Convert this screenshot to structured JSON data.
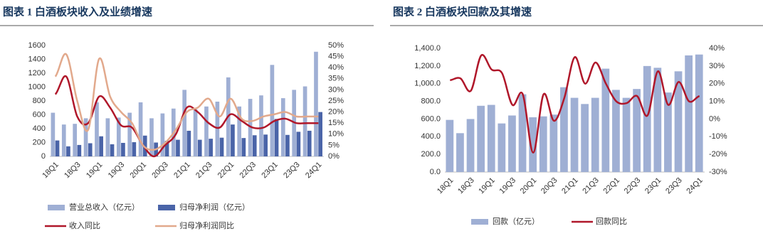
{
  "chart_data": [
    {
      "type": "combo",
      "title": "图表 1  白酒板块收入及业绩增速",
      "categories": [
        "18Q1",
        null,
        "18Q3",
        null,
        "19Q1",
        null,
        "19Q3",
        null,
        "20Q1",
        null,
        "20Q3",
        null,
        "21Q1",
        null,
        "21Q3",
        null,
        "22Q1",
        null,
        "22Q3",
        null,
        "23Q1",
        null,
        "23Q3",
        null,
        "24Q1"
      ],
      "ylim": [
        0,
        1600
      ],
      "yticks": [
        0,
        200,
        400,
        600,
        800,
        1000,
        1200,
        1400,
        1600
      ],
      "y2lim": [
        0,
        50
      ],
      "y2ticks": [
        {
          "value": 0,
          "label": "0%"
        },
        {
          "value": 5,
          "label": "5%"
        },
        {
          "value": 10,
          "label": "10%"
        },
        {
          "value": 15,
          "label": "15%"
        },
        {
          "value": 20,
          "label": "20%"
        },
        {
          "value": 25,
          "label": "25%"
        },
        {
          "value": 30,
          "label": "30%"
        },
        {
          "value": 35,
          "label": "35%"
        },
        {
          "value": 40,
          "label": "40%"
        },
        {
          "value": 45,
          "label": "45%"
        },
        {
          "value": 50,
          "label": "50%"
        }
      ],
      "series": [
        {
          "name": "营业总收入（亿元）",
          "type": "bar",
          "color": "#9fafd4",
          "values": [
            630,
            460,
            470,
            550,
            780,
            550,
            560,
            630,
            780,
            550,
            620,
            690,
            960,
            680,
            720,
            790,
            1140,
            720,
            830,
            880,
            1320,
            840,
            960,
            1010,
            1510
          ]
        },
        {
          "name": "归母净利润（亿元）",
          "type": "bar",
          "color": "#4a64a8",
          "values": [
            230,
            145,
            165,
            190,
            290,
            175,
            195,
            205,
            300,
            200,
            225,
            240,
            370,
            240,
            255,
            270,
            460,
            265,
            305,
            315,
            540,
            310,
            355,
            370,
            640
          ]
        },
        {
          "name": "收入同比",
          "type": "line",
          "axis": "y2",
          "color": "#b0172a",
          "values": [
            28,
            36,
            18,
            15,
            27,
            22,
            14,
            13,
            5,
            0,
            5,
            10,
            22,
            20,
            15,
            13,
            19,
            16,
            13,
            13,
            16,
            17,
            15,
            15,
            15
          ]
        },
        {
          "name": "归母净利润同比",
          "type": "line",
          "axis": "y2",
          "color": "#e2a98c",
          "values": [
            36,
            46,
            25,
            12,
            44,
            27,
            20,
            15,
            5,
            3,
            6,
            12,
            20,
            22,
            26,
            18,
            26,
            17,
            16,
            18,
            19,
            20,
            18,
            18,
            18
          ]
        }
      ]
    },
    {
      "type": "combo",
      "title": "图表 2  白酒板块回款及其增速",
      "categories": [
        "18Q1",
        null,
        "18Q3",
        null,
        "19Q1",
        null,
        "19Q3",
        null,
        "20Q1",
        null,
        "20Q3",
        null,
        "21Q1",
        null,
        "21Q3",
        null,
        "22Q1",
        null,
        "22Q3",
        null,
        "23Q1",
        null,
        "23Q3",
        null,
        "24Q1"
      ],
      "ylim": [
        0,
        1400
      ],
      "yticks": [
        {
          "value": 0,
          "label": "0.0"
        },
        {
          "value": 200,
          "label": "200.0"
        },
        {
          "value": 400,
          "label": "400.0"
        },
        {
          "value": 600,
          "label": "600.0"
        },
        {
          "value": 800,
          "label": "800.0"
        },
        {
          "value": 1000,
          "label": "1,000.0"
        },
        {
          "value": 1200,
          "label": "1,200.0"
        },
        {
          "value": 1400,
          "label": "1,400.0"
        }
      ],
      "y2lim": [
        -30,
        40
      ],
      "y2ticks": [
        {
          "value": -30,
          "label": "-30%"
        },
        {
          "value": -20,
          "label": "-20%"
        },
        {
          "value": -10,
          "label": "-10%"
        },
        {
          "value": 0,
          "label": "0%"
        },
        {
          "value": 10,
          "label": "10%"
        },
        {
          "value": 20,
          "label": "20%"
        },
        {
          "value": 30,
          "label": "30%"
        },
        {
          "value": 40,
          "label": "40%"
        }
      ],
      "series": [
        {
          "name": "回款（亿元）",
          "type": "bar",
          "color": "#9fafd4",
          "values": [
            590,
            440,
            600,
            750,
            760,
            550,
            640,
            880,
            620,
            630,
            650,
            960,
            840,
            770,
            840,
            1170,
            930,
            840,
            940,
            1200,
            1180,
            900,
            1140,
            1320,
            1330
          ]
        },
        {
          "name": "回款同比",
          "type": "line",
          "axis": "y2",
          "color": "#b0172a",
          "values": [
            22,
            23,
            16,
            36,
            28,
            26,
            8,
            14,
            -19,
            14,
            -1,
            12,
            35,
            20,
            32,
            20,
            10,
            9,
            13,
            2,
            27,
            8,
            21,
            10,
            13
          ]
        }
      ]
    }
  ]
}
